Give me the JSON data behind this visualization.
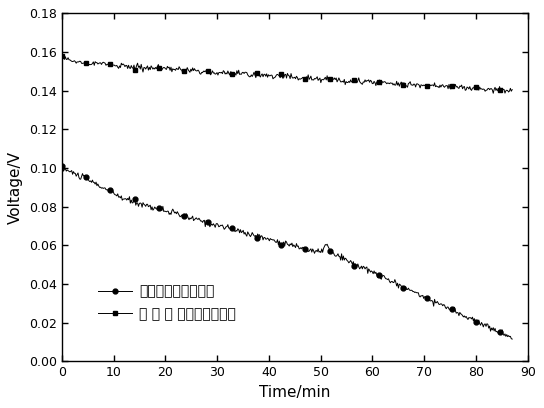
{
  "title": "",
  "xlabel": "Time/min",
  "ylabel": "Voltage/V",
  "xlim": [
    0,
    90
  ],
  "ylim": [
    0.0,
    0.18
  ],
  "xticks": [
    0,
    10,
    20,
    30,
    40,
    50,
    60,
    70,
    80,
    90
  ],
  "yticks": [
    0.0,
    0.02,
    0.04,
    0.06,
    0.08,
    0.1,
    0.12,
    0.14,
    0.16,
    0.18
  ],
  "legend1_label": "传统阴极结构的电池",
  "legend2_label": "本 发 明 阴极结构的电池",
  "line_color": "#000000",
  "background_color": "#ffffff",
  "marker1": "o",
  "marker2": "s",
  "markersize1": 3.5,
  "markersize2": 3.5
}
